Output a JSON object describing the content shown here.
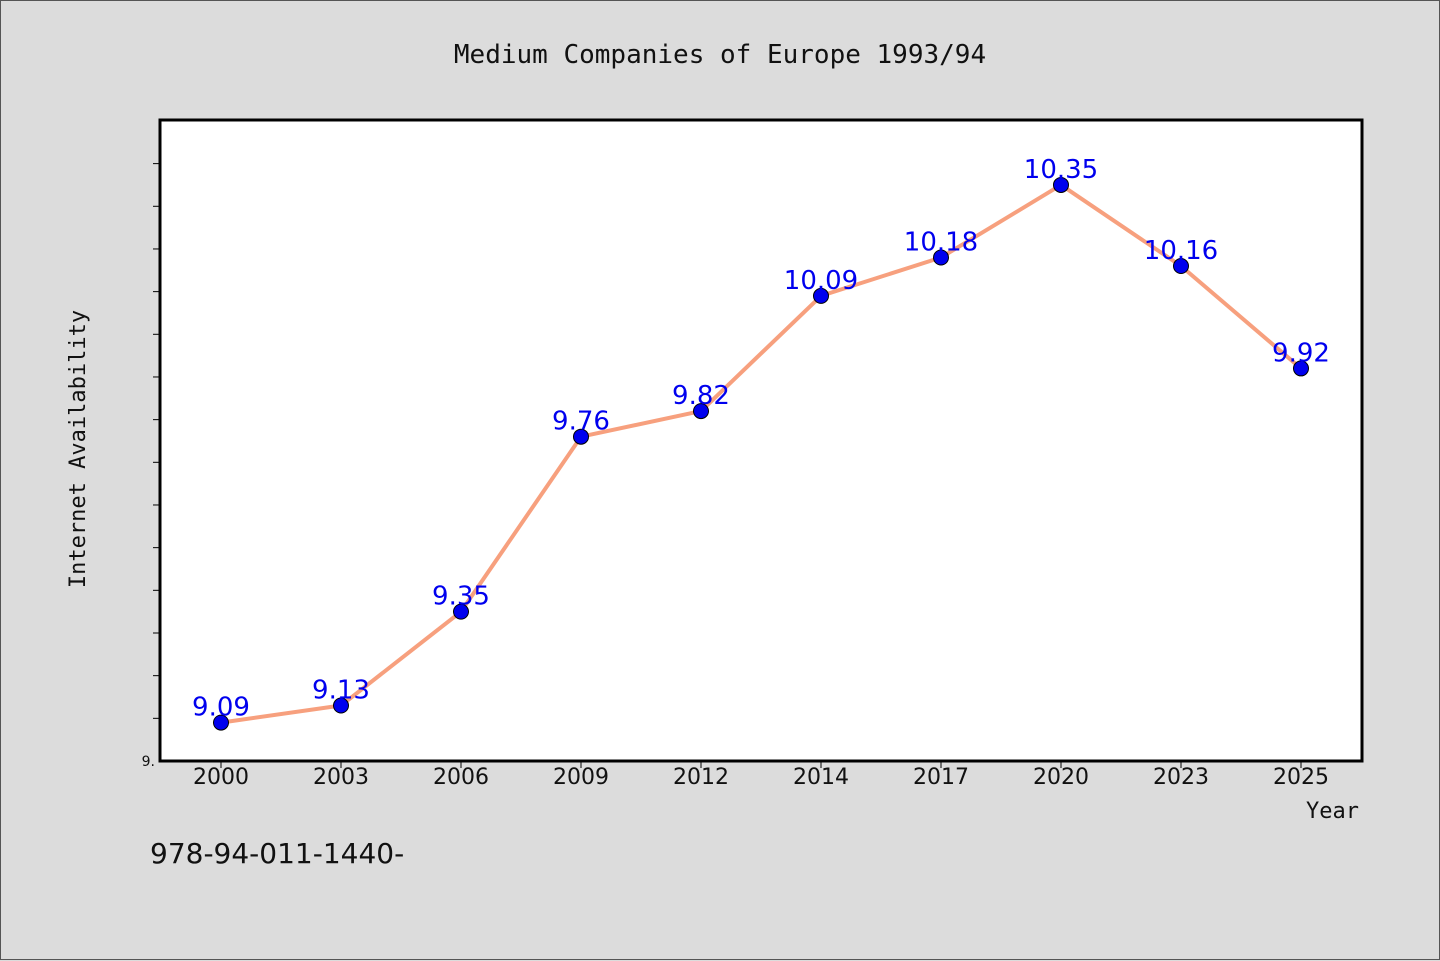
{
  "colors": {
    "background": "#dcdcdc",
    "plot_background": "#ffffff",
    "line": "#f7a07e",
    "marker": "#0000ee",
    "data_label": "#0000ee"
  },
  "footer": {
    "code": "978-94-011-1440-"
  },
  "chart_data": {
    "type": "line",
    "title": "Medium Companies of Europe 1993/94",
    "xlabel": "Year",
    "ylabel": "Internet Availability",
    "categories": [
      "2000",
      "2003",
      "2006",
      "2009",
      "2012",
      "2014",
      "2017",
      "2020",
      "2023",
      "2025"
    ],
    "series": [
      {
        "values": [
          9.09,
          9.13,
          9.35,
          9.76,
          9.82,
          10.09,
          10.18,
          10.35,
          10.16,
          9.92
        ]
      }
    ],
    "data_labels": [
      "9.09",
      "9.13",
      "9.35",
      "9.76",
      "9.82",
      "10.09",
      "10.18",
      "10.35",
      "10.16",
      "9.92"
    ],
    "ylim": [
      9.0,
      10.5
    ],
    "y_tick_labels": [
      "9."
    ],
    "grid": false,
    "legend": "none"
  }
}
